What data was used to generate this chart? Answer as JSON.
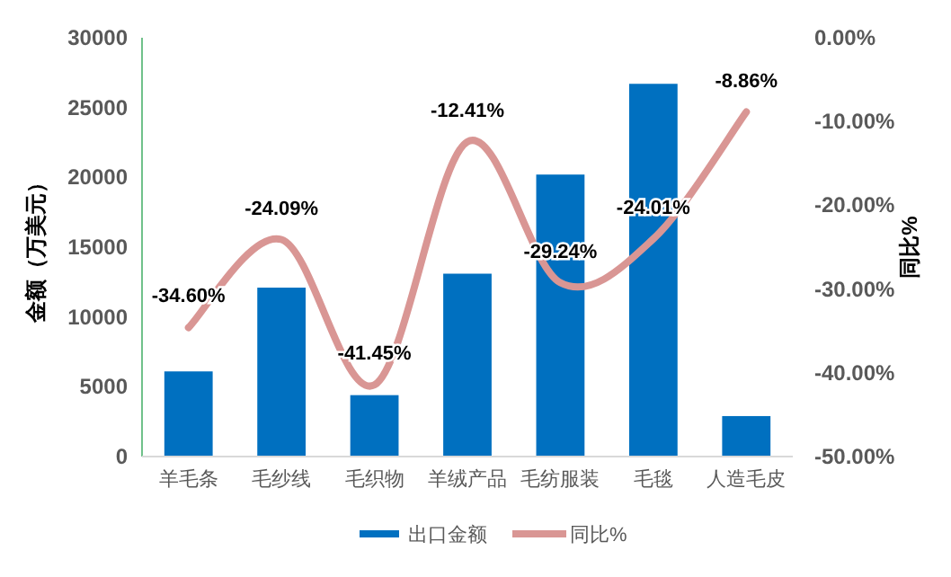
{
  "chart_data": {
    "type": "bar",
    "categories": [
      "羊毛条",
      "毛纱线",
      "毛织物",
      "羊绒产品",
      "毛纺服装",
      "毛毯",
      "人造毛皮"
    ],
    "ylabel": "金额（万美元）",
    "y2label": "同比%",
    "ylim": [
      0,
      30000
    ],
    "yticks": [
      0,
      5000,
      10000,
      15000,
      20000,
      25000,
      30000
    ],
    "y2lim": [
      -50,
      0
    ],
    "y2ticks": [
      {
        "value": -50,
        "label": "-50.00%"
      },
      {
        "value": -40,
        "label": "-40.00%"
      },
      {
        "value": -30,
        "label": "-30.00%"
      },
      {
        "value": -20,
        "label": "-20.00%"
      },
      {
        "value": -10,
        "label": "-10.00%"
      },
      {
        "value": 0,
        "label": "0.00%"
      }
    ],
    "series": [
      {
        "name": "出口金额",
        "color": "#0070c0",
        "values": [
          6100,
          12100,
          4400,
          13100,
          20200,
          26700,
          2900
        ]
      },
      {
        "name": "同比%",
        "type": "line",
        "axis": "y2",
        "color": "#d99694",
        "values": [
          -34.6,
          -24.09,
          -41.45,
          -12.41,
          -29.24,
          -24.01,
          -8.86
        ],
        "value_labels": [
          "-34.60%",
          "-24.09%",
          "-41.45%",
          "-12.41%",
          "-29.24%",
          "-24.01%",
          "-8.86%"
        ]
      }
    ],
    "legend": "bottom",
    "grid": false
  }
}
